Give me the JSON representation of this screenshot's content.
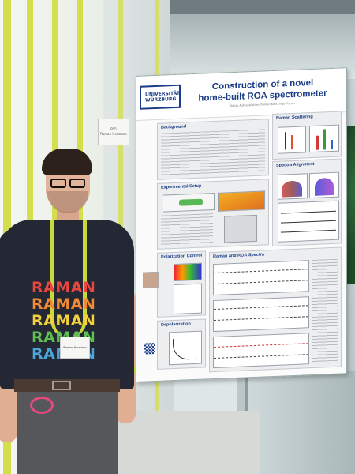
{
  "background": {
    "sign_lines": [
      "P15",
      "Raman Hermann"
    ]
  },
  "poster": {
    "logo_lines": [
      "UNIVERSITÄT",
      "WÜRZBURG"
    ],
    "title_line1": "Construction of a novel",
    "title_line2": "home-built ROA spectrometer",
    "authors": "Tobias Aufdenblatten, Raman Kahl, Ingo Fischer",
    "sections": {
      "background": "Background",
      "raman_scattering": "Raman Scattering",
      "spectra_alignment": "Spectra Alignment",
      "experimental_setup": "Experimental Setup",
      "polarization_control": "Polarization Control",
      "raman_roa_spectra": "Raman and ROA Spectra",
      "depolarization": "Depolarization"
    }
  },
  "person": {
    "shirt_text": [
      "RAMAN",
      "RAMAN",
      "RAMAN",
      "RAMAN",
      "RAMAN"
    ],
    "shirt_colors": [
      "#e8463e",
      "#f18a32",
      "#f3d13b",
      "#5fbf54",
      "#4aa6d9"
    ],
    "badge_text": "Raman Hermann"
  }
}
